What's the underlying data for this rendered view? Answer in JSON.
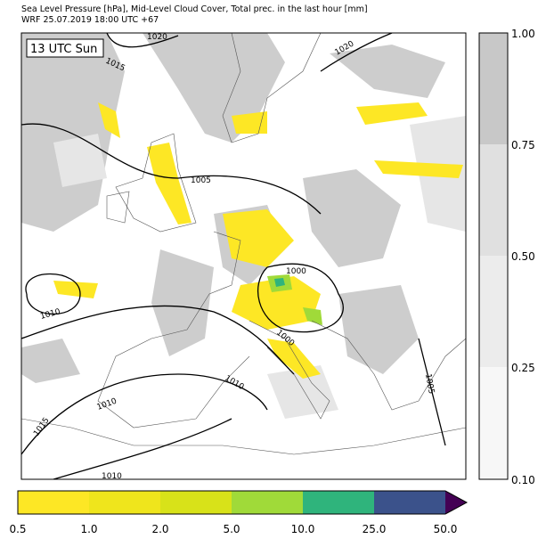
{
  "header": {
    "title": "Sea Level Pressure [hPa], Mid-Level Cloud Cover, Total prec. in the last hour [mm]",
    "subtitle": "WRF 25.07.2019 18:00 UTC +67"
  },
  "map": {
    "time_label": "13 UTC Sun",
    "isobar_labels": [
      "1020",
      "1015",
      "1020",
      "1005",
      "1000",
      "1010",
      "1000",
      "1010",
      "1010",
      "1015",
      "1010",
      "1005"
    ]
  },
  "cloud_colorbar": {
    "ticks": [
      "1.00",
      "0.75",
      "0.50",
      "0.25",
      "0.10"
    ]
  },
  "precip_colorbar": {
    "ticks": [
      "0.5",
      "1.0",
      "2.0",
      "5.0",
      "10.0",
      "25.0",
      "50.0"
    ]
  }
}
